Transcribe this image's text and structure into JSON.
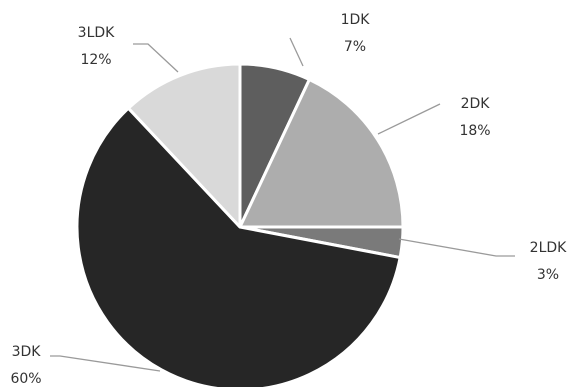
{
  "chart_data": {
    "type": "pie",
    "title": "",
    "categories": [
      "1DK",
      "2DK",
      "2LDK",
      "3DK",
      "3LDK"
    ],
    "values": [
      7,
      18,
      3,
      60,
      12
    ],
    "value_labels": [
      "7%",
      "18%",
      "3%",
      "60%",
      "12%"
    ],
    "colors": [
      "#5e5e5e",
      "#adadad",
      "#7a7a7a",
      "#262626",
      "#d9d9d9"
    ],
    "start_angle_deg": 0,
    "direction": "clockwise",
    "legend": "none",
    "label_placement": "outside-with-leader-lines"
  }
}
